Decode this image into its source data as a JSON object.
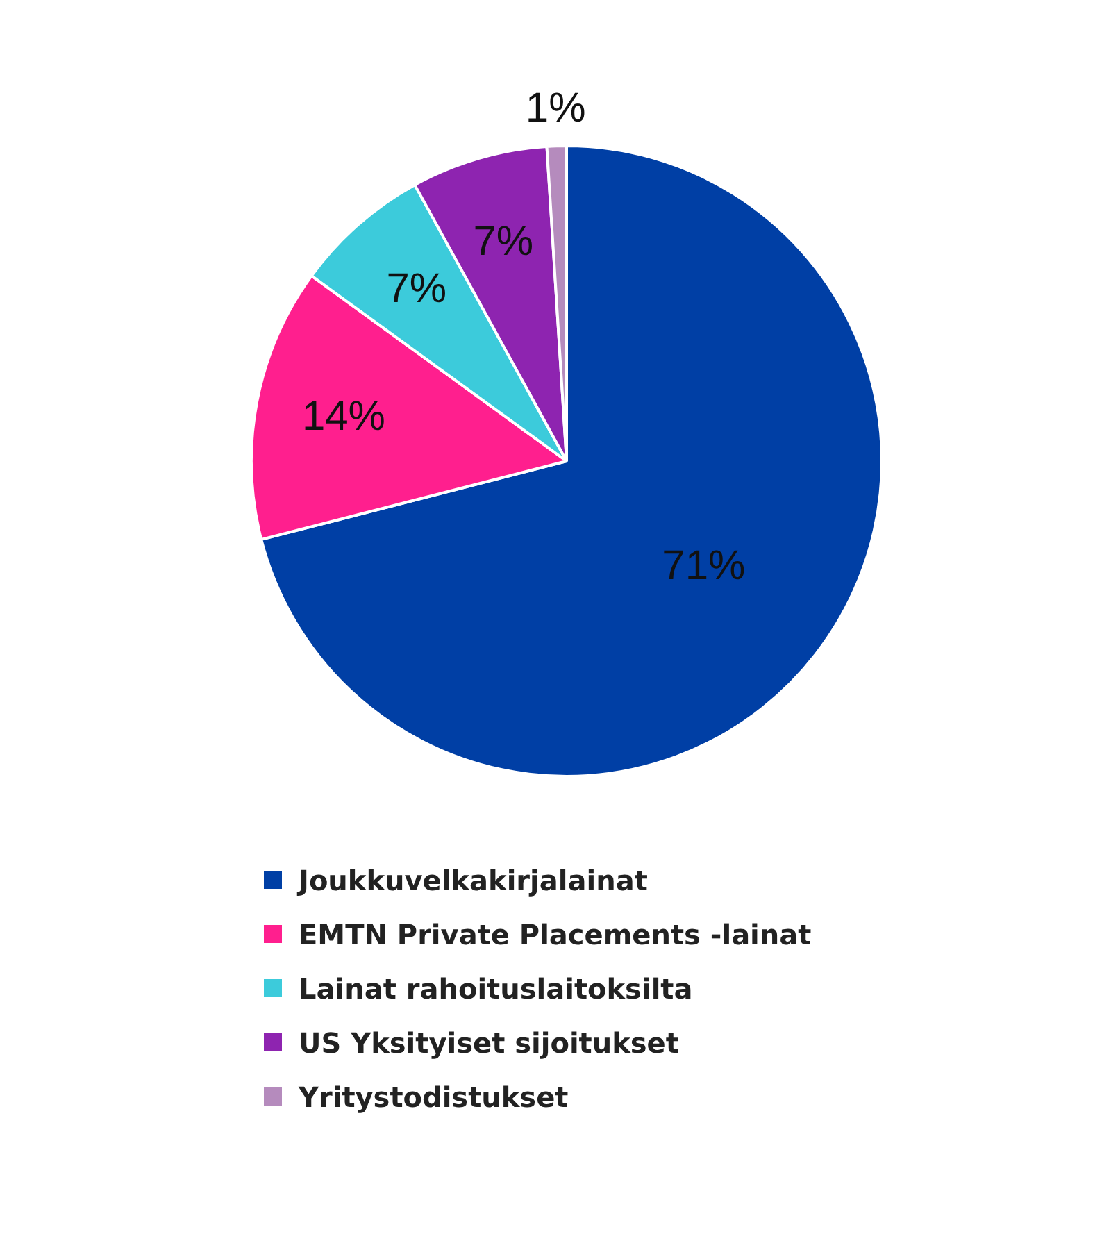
{
  "chart_data": {
    "type": "pie",
    "categories": [
      "Joukkuvelkakirjalainat",
      "EMTN Private Placements -lainat",
      "Lainat rahoituslaitoksilta",
      "US Yksityiset sijoitukset",
      "Yritystodistukset"
    ],
    "values": [
      71,
      14,
      7,
      7,
      1
    ],
    "value_labels": [
      "71%",
      "14%",
      "7%",
      "7%",
      "1%"
    ],
    "colors": [
      "#003fa5",
      "#ff1f8e",
      "#3ccbdb",
      "#8e24b0",
      "#b58bbd"
    ],
    "legend": "bottom"
  }
}
